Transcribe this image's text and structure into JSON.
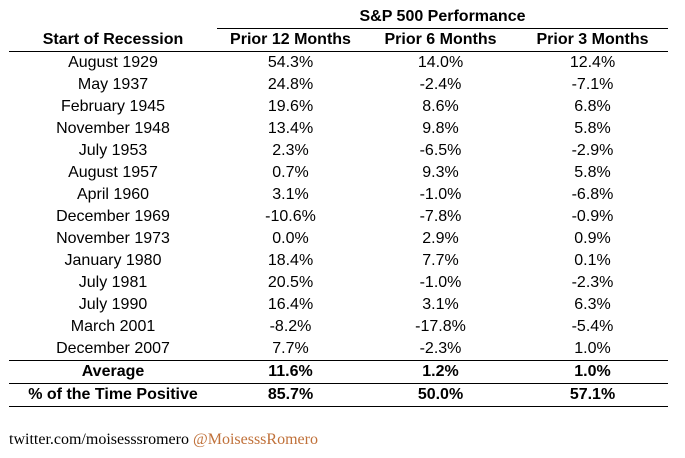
{
  "table": {
    "group_header": "S&P 500 Performance",
    "columns": [
      "Start of Recession",
      "Prior 12 Months",
      "Prior 6 Months",
      "Prior 3 Months"
    ],
    "rows": [
      [
        "August 1929",
        "54.3%",
        "14.0%",
        "12.4%"
      ],
      [
        "May 1937",
        "24.8%",
        "-2.4%",
        "-7.1%"
      ],
      [
        "February 1945",
        "19.6%",
        "8.6%",
        "6.8%"
      ],
      [
        "November 1948",
        "13.4%",
        "9.8%",
        "5.8%"
      ],
      [
        "July 1953",
        "2.3%",
        "-6.5%",
        "-2.9%"
      ],
      [
        "August 1957",
        "0.7%",
        "9.3%",
        "5.8%"
      ],
      [
        "April 1960",
        "3.1%",
        "-1.0%",
        "-6.8%"
      ],
      [
        "December 1969",
        "-10.6%",
        "-7.8%",
        "-0.9%"
      ],
      [
        "November 1973",
        "0.0%",
        "2.9%",
        "0.9%"
      ],
      [
        "January 1980",
        "18.4%",
        "7.7%",
        "0.1%"
      ],
      [
        "July 1981",
        "20.5%",
        "-1.0%",
        "-2.3%"
      ],
      [
        "July 1990",
        "16.4%",
        "3.1%",
        "6.3%"
      ],
      [
        "March 2001",
        "-8.2%",
        "-17.8%",
        "-5.4%"
      ],
      [
        "December 2007",
        "7.7%",
        "-2.3%",
        "1.0%"
      ]
    ],
    "summary": [
      [
        "Average",
        "11.6%",
        "1.2%",
        "1.0%"
      ],
      [
        "% of the Time Positive",
        "85.7%",
        "50.0%",
        "57.1%"
      ]
    ]
  },
  "footer": {
    "url": "twitter.com/moisesssromero",
    "handle": "@MoisesssRomero",
    "handle_color": "#c0713a"
  }
}
